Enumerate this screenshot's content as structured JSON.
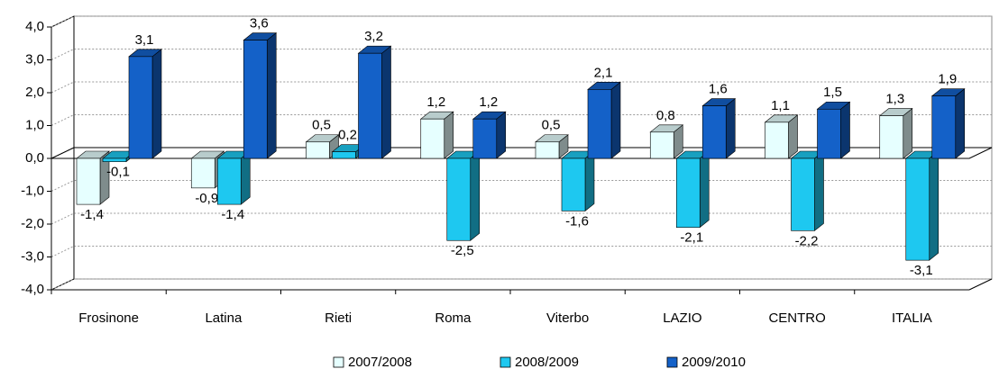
{
  "chart_data": {
    "type": "bar3d",
    "categories": [
      "Frosinone",
      "Latina",
      "Rieti",
      "Roma",
      "Viterbo",
      "LAZIO",
      "CENTRO",
      "ITALIA"
    ],
    "series": [
      {
        "name": "2007/2008",
        "color": "#e6ffff",
        "values": [
          -1.4,
          -0.9,
          0.5,
          1.2,
          0.5,
          0.8,
          1.1,
          1.3
        ],
        "value_labels": [
          "-1,4",
          "-0,9",
          "0,5",
          "1,2",
          "0,5",
          "0,8",
          "1,1",
          "1,3"
        ]
      },
      {
        "name": "2008/2009",
        "color": "#1ec8f0",
        "values": [
          -0.1,
          -1.4,
          0.2,
          -2.5,
          -1.6,
          -2.1,
          -2.2,
          -3.1
        ],
        "value_labels": [
          "-0,1",
          "-1,4",
          "0,2",
          "-2,5",
          "-1,6",
          "-2,1",
          "-2,2",
          "-3,1"
        ]
      },
      {
        "name": "2009/2010",
        "color": "#1461c8",
        "values": [
          3.1,
          3.6,
          3.2,
          1.2,
          2.1,
          1.6,
          1.5,
          1.9
        ],
        "value_labels": [
          "3,1",
          "3,6",
          "3,2",
          "1,2",
          "2,1",
          "1,6",
          "1,5",
          "1,9"
        ]
      }
    ],
    "ylim": [
      -4,
      4
    ],
    "yticks": [
      {
        "value": -4,
        "label": "-4,0"
      },
      {
        "value": -3,
        "label": "-3,0"
      },
      {
        "value": -2,
        "label": "-2,0"
      },
      {
        "value": -1,
        "label": "-1,0"
      },
      {
        "value": 0,
        "label": "0,0"
      },
      {
        "value": 1,
        "label": "1,0"
      },
      {
        "value": 2,
        "label": "2,0"
      },
      {
        "value": 3,
        "label": "3,0"
      },
      {
        "value": 4,
        "label": "4,0"
      }
    ],
    "grid": true,
    "legend": "bottom"
  }
}
